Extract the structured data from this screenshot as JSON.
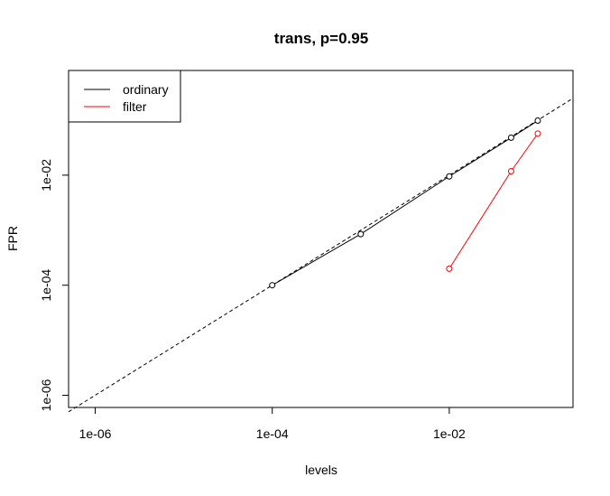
{
  "chart_data": {
    "type": "line",
    "title": "trans, p=0.95",
    "xlabel": "levels",
    "ylabel": "FPR",
    "xscale": "log",
    "yscale": "log",
    "xlim": [
      5e-07,
      0.25
    ],
    "ylim": [
      6e-07,
      0.8
    ],
    "xticks": [
      1e-06,
      0.0001,
      0.01
    ],
    "xtick_labels": [
      "1e-06",
      "1e-04",
      "1e-02"
    ],
    "yticks": [
      1e-06,
      0.0001,
      0.01
    ],
    "ytick_labels": [
      "1e-06",
      "1e-04",
      "1e-02"
    ],
    "grid": false,
    "legend_position": "top-left",
    "reference_line": {
      "style": "dashed",
      "color": "#000000",
      "from": [
        5e-07,
        5e-07
      ],
      "to": [
        0.25,
        0.25
      ]
    },
    "series": [
      {
        "name": "ordinary",
        "color": "#000000",
        "x": [
          0.0001,
          0.001,
          0.01,
          0.05,
          0.1
        ],
        "y": [
          0.0001,
          0.00085,
          0.0095,
          0.048,
          0.098
        ]
      },
      {
        "name": "filter",
        "color": "#ff0000",
        "x": [
          0.01,
          0.05,
          0.1
        ],
        "y": [
          0.0002,
          0.0118,
          0.057
        ]
      }
    ]
  }
}
